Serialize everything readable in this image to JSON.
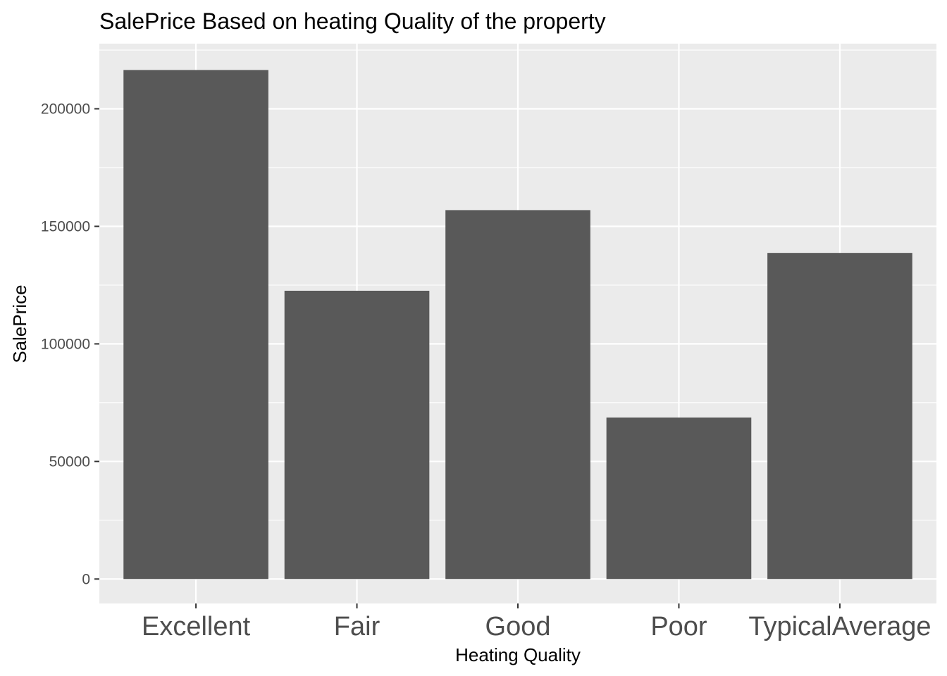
{
  "chart_data": {
    "type": "bar",
    "title": "SalePrice Based on heating Quality of the property",
    "xlabel": "Heating Quality",
    "ylabel": "SalePrice",
    "categories": [
      "Excellent",
      "Fair",
      "Good",
      "Poor",
      "TypicalAverage"
    ],
    "values": [
      216500,
      122600,
      156900,
      68700,
      138700
    ],
    "ylim": [
      -10400,
      227700
    ],
    "yticks": [
      0,
      50000,
      100000,
      150000,
      200000
    ],
    "ytick_labels": [
      "0",
      "50000",
      "100000",
      "150000",
      "200000"
    ],
    "grid": true,
    "legend": "none",
    "colors": {
      "bar": "#595959",
      "panel": "#ebebeb",
      "grid": "#ffffff",
      "tick": "#333333"
    }
  }
}
